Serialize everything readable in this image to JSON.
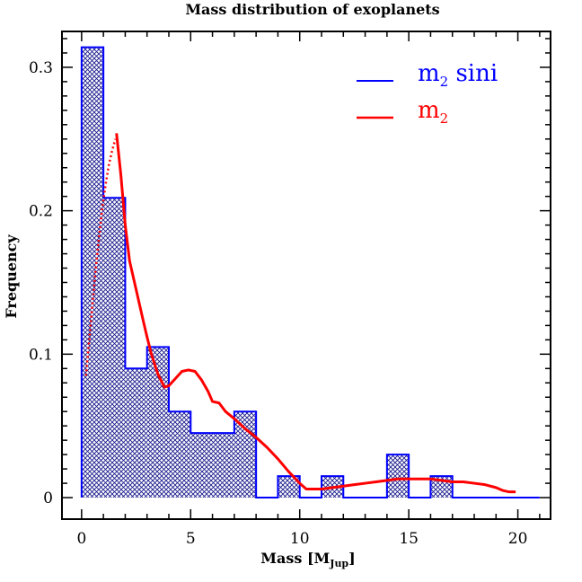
{
  "chart_data": {
    "type": "bar",
    "title": "Mass distribution of exoplanets",
    "xlabel": "Mass [M",
    "xlabel_sub": "Jup",
    "xlabel_close": "]",
    "ylabel": "Frequency",
    "xlim": [
      -0.9,
      21.5
    ],
    "ylim": [
      -0.015,
      0.325
    ],
    "xticks": [
      0,
      5,
      10,
      15,
      20
    ],
    "xtick_labels": [
      "0",
      "5",
      "10",
      "15",
      "20"
    ],
    "yticks": [
      0,
      0.1,
      0.2,
      0.3
    ],
    "ytick_labels": [
      "0",
      "0.1",
      "0.2",
      "0.3"
    ],
    "grid": false,
    "legend_position": "top-right",
    "histogram": {
      "name": "m",
      "name_sub": "2",
      "name_suffix": " sini",
      "color": "#0000ff",
      "bin_edges": [
        0,
        1,
        2,
        3,
        4,
        5,
        6,
        7,
        8,
        9,
        10,
        11,
        12,
        13,
        14,
        15,
        16,
        17,
        18,
        19,
        20,
        21
      ],
      "values": [
        0.314,
        0.209,
        0.09,
        0.105,
        0.06,
        0.045,
        0.045,
        0.06,
        0.0,
        0.015,
        0.0,
        0.015,
        0.0,
        0.0,
        0.03,
        0.0,
        0.015,
        0.0,
        0.0,
        0.0,
        0.0
      ]
    },
    "curve": {
      "name": "m",
      "name_sub": "2",
      "color": "#ff0000",
      "x": [
        1.6,
        1.8,
        2.0,
        2.2,
        2.5,
        2.8,
        3.0,
        3.2,
        3.5,
        3.8,
        4.0,
        4.3,
        4.6,
        4.9,
        5.2,
        5.5,
        5.8,
        6.0,
        6.3,
        6.6,
        7.0,
        7.5,
        8.0,
        8.5,
        9.0,
        9.5,
        10.0,
        10.3,
        10.6,
        11.0,
        11.5,
        12.0,
        12.5,
        13.0,
        13.5,
        14.0,
        14.5,
        15.0,
        15.5,
        16.0,
        16.5,
        17.0,
        17.5,
        18.0,
        18.5,
        19.0,
        19.3,
        19.6,
        19.9
      ],
      "y": [
        0.254,
        0.225,
        0.19,
        0.165,
        0.145,
        0.125,
        0.112,
        0.1,
        0.086,
        0.077,
        0.078,
        0.083,
        0.088,
        0.089,
        0.088,
        0.082,
        0.074,
        0.067,
        0.066,
        0.06,
        0.055,
        0.048,
        0.042,
        0.035,
        0.027,
        0.018,
        0.01,
        0.006,
        0.006,
        0.006,
        0.007,
        0.008,
        0.009,
        0.01,
        0.011,
        0.012,
        0.013,
        0.013,
        0.013,
        0.013,
        0.012,
        0.011,
        0.011,
        0.01,
        0.009,
        0.007,
        0.005,
        0.004,
        0.004
      ],
      "dotted_x": [
        0.2,
        0.35,
        0.5,
        0.65,
        0.8,
        0.95,
        1.1,
        1.25,
        1.4,
        1.55
      ],
      "dotted_y": [
        0.085,
        0.11,
        0.135,
        0.16,
        0.182,
        0.202,
        0.218,
        0.232,
        0.242,
        0.25
      ]
    }
  }
}
